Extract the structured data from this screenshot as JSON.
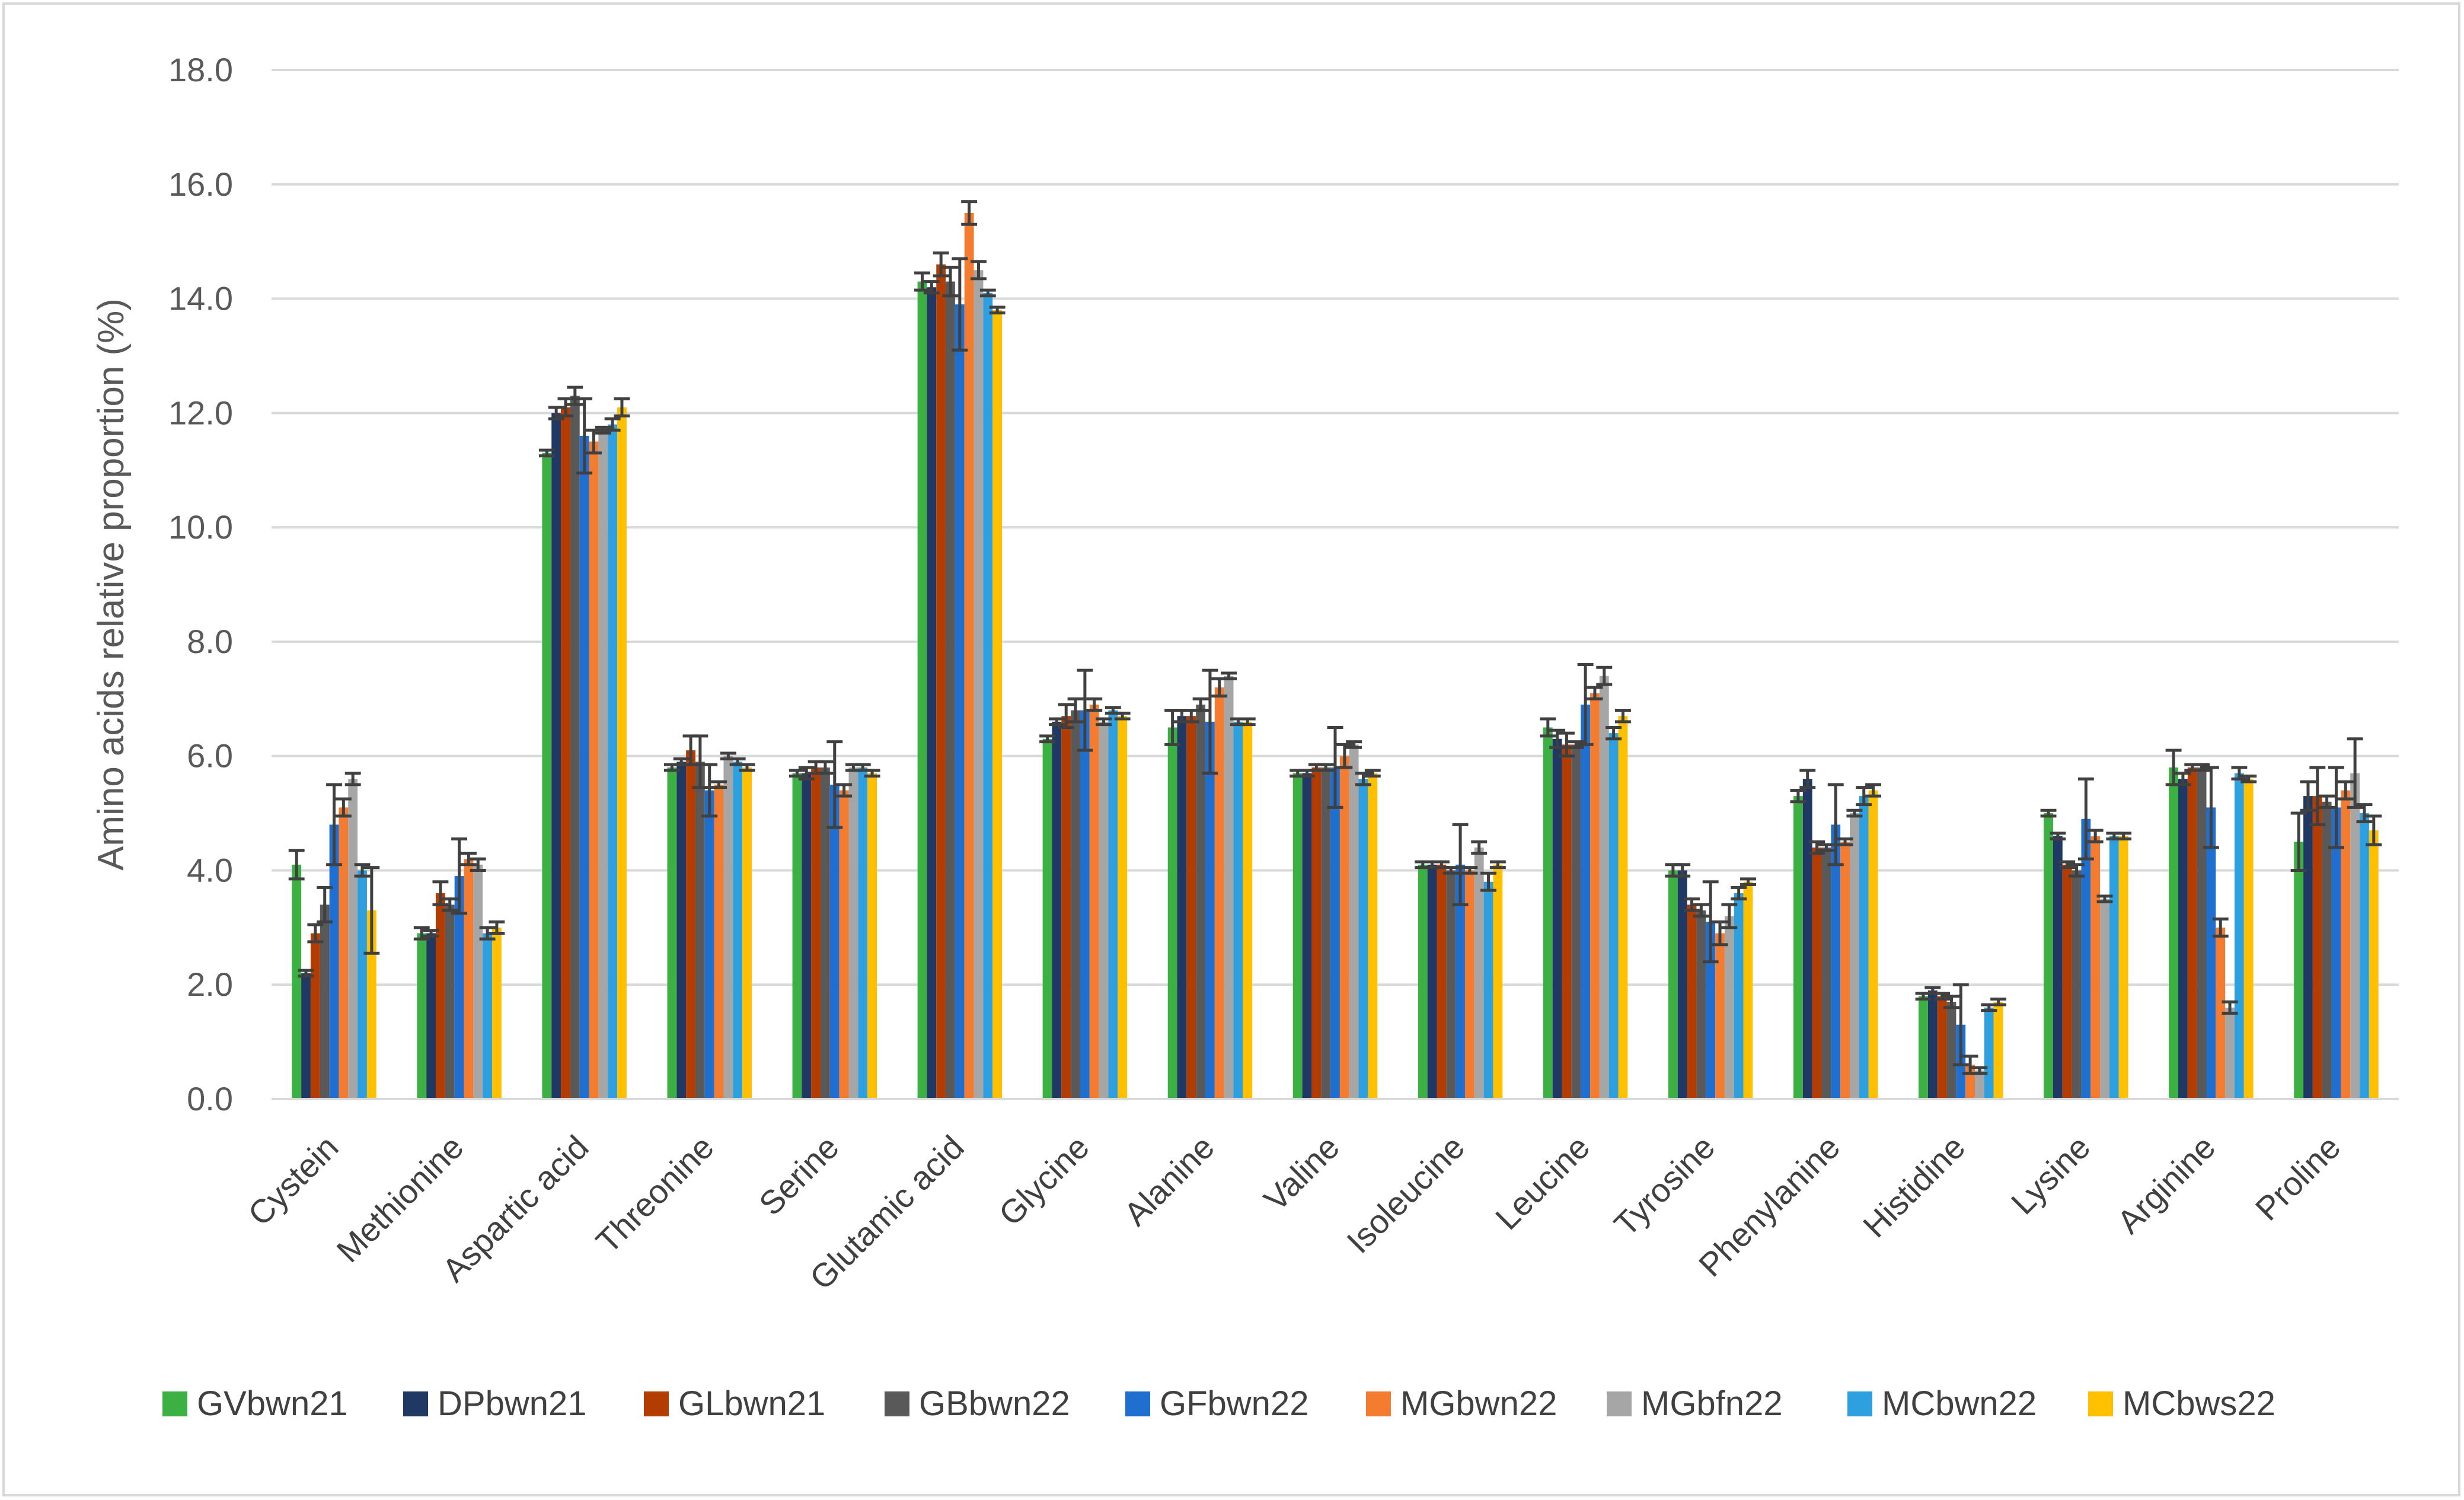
{
  "chart_data": {
    "type": "bar",
    "title": "",
    "xlabel": "",
    "ylabel": "Amino acids relative proportion (%)",
    "ylim": [
      0,
      18
    ],
    "yticks": [
      "0.0",
      "2.0",
      "4.0",
      "6.0",
      "8.0",
      "10.0",
      "12.0",
      "14.0",
      "16.0",
      "18.0"
    ],
    "grid": true,
    "legend_position": "bottom",
    "categories": [
      "Cystein",
      "Methionine",
      "Aspartic acid",
      "Threonine",
      "Serine",
      "Glutamic acid",
      "Glycine",
      "Alanine",
      "Valine",
      "Isoleucine",
      "Leucine",
      "Tyrosine",
      "Phenylanine",
      "Histidine",
      "Lysine",
      "Arginine",
      "Proline"
    ],
    "series": [
      {
        "name": "GVbwn21",
        "color": "#3cb043",
        "values": [
          4.1,
          2.9,
          11.3,
          5.8,
          5.7,
          14.3,
          6.3,
          6.5,
          5.7,
          4.1,
          6.5,
          4.0,
          5.3,
          1.8,
          5.0,
          5.8,
          4.5
        ],
        "errors": [
          0.25,
          0.1,
          0.05,
          0.05,
          0.05,
          0.15,
          0.05,
          0.3,
          0.05,
          0.05,
          0.15,
          0.1,
          0.1,
          0.05,
          0.05,
          0.3,
          0.5
        ]
      },
      {
        "name": "DPbwn21",
        "color": "#1f3864",
        "values": [
          2.2,
          2.9,
          12.0,
          5.9,
          5.7,
          14.2,
          6.6,
          6.7,
          5.7,
          4.1,
          6.3,
          4.0,
          5.6,
          1.9,
          4.6,
          5.6,
          5.3
        ],
        "errors": [
          0.05,
          0.05,
          0.1,
          0.05,
          0.1,
          0.1,
          0.05,
          0.1,
          0.05,
          0.05,
          0.15,
          0.1,
          0.15,
          0.05,
          0.05,
          0.1,
          0.25
        ]
      },
      {
        "name": "GLbwn21",
        "color": "#b33c00",
        "values": [
          2.9,
          3.6,
          12.1,
          6.1,
          5.8,
          14.6,
          6.7,
          6.7,
          5.8,
          4.1,
          6.2,
          3.4,
          4.4,
          1.8,
          4.1,
          5.8,
          5.3
        ],
        "errors": [
          0.15,
          0.2,
          0.15,
          0.25,
          0.1,
          0.2,
          0.2,
          0.1,
          0.05,
          0.05,
          0.2,
          0.1,
          0.1,
          0.05,
          0.05,
          0.05,
          0.5
        ]
      },
      {
        "name": "GBbwn22",
        "color": "#595959",
        "values": [
          3.4,
          3.4,
          12.3,
          5.9,
          5.8,
          14.3,
          6.8,
          6.9,
          5.8,
          4.0,
          6.2,
          3.3,
          4.4,
          1.7,
          4.0,
          5.8,
          5.2
        ],
        "errors": [
          0.3,
          0.1,
          0.15,
          0.45,
          0.1,
          0.25,
          0.2,
          0.1,
          0.05,
          0.05,
          0.05,
          0.1,
          0.05,
          0.1,
          0.1,
          0.05,
          0.1
        ]
      },
      {
        "name": "GFbwn22",
        "color": "#1f6fd0",
        "values": [
          4.8,
          3.9,
          11.6,
          5.4,
          5.5,
          13.9,
          6.8,
          6.6,
          5.8,
          4.1,
          6.9,
          3.1,
          4.8,
          1.3,
          4.9,
          5.1,
          5.1
        ],
        "errors": [
          0.7,
          0.65,
          0.65,
          0.45,
          0.75,
          0.8,
          0.7,
          0.9,
          0.7,
          0.7,
          0.7,
          0.7,
          0.7,
          0.7,
          0.7,
          0.7,
          0.7
        ]
      },
      {
        "name": "MGbwn22",
        "color": "#f47c30",
        "values": [
          5.1,
          4.2,
          11.5,
          5.5,
          5.4,
          15.5,
          6.9,
          7.2,
          6.0,
          4.0,
          7.1,
          2.9,
          4.5,
          0.6,
          4.6,
          3.0,
          5.4
        ],
        "errors": [
          0.15,
          0.1,
          0.2,
          0.05,
          0.1,
          0.2,
          0.1,
          0.15,
          0.2,
          0.05,
          0.1,
          0.2,
          0.05,
          0.15,
          0.1,
          0.15,
          0.15
        ]
      },
      {
        "name": "MGbfn22",
        "color": "#a6a6a6",
        "values": [
          5.6,
          4.1,
          11.7,
          6.0,
          5.8,
          14.5,
          6.6,
          7.4,
          6.2,
          4.4,
          7.4,
          3.2,
          5.0,
          0.5,
          3.5,
          1.6,
          5.7
        ],
        "errors": [
          0.1,
          0.1,
          0.05,
          0.05,
          0.05,
          0.15,
          0.05,
          0.05,
          0.05,
          0.1,
          0.15,
          0.2,
          0.05,
          0.05,
          0.05,
          0.1,
          0.6
        ]
      },
      {
        "name": "MCbwn22",
        "color": "#2e9fdf",
        "values": [
          4.0,
          2.9,
          11.8,
          5.9,
          5.8,
          14.1,
          6.8,
          6.6,
          5.6,
          3.8,
          6.4,
          3.6,
          5.3,
          1.6,
          4.6,
          5.7,
          5.0
        ],
        "errors": [
          0.1,
          0.1,
          0.1,
          0.05,
          0.05,
          0.05,
          0.05,
          0.05,
          0.1,
          0.15,
          0.1,
          0.1,
          0.15,
          0.05,
          0.05,
          0.1,
          0.15
        ]
      },
      {
        "name": "MCbws22",
        "color": "#ffc000",
        "values": [
          3.3,
          3.0,
          12.1,
          5.8,
          5.7,
          13.8,
          6.7,
          6.6,
          5.7,
          4.1,
          6.7,
          3.8,
          5.4,
          1.7,
          4.6,
          5.6,
          4.7
        ],
        "errors": [
          0.75,
          0.1,
          0.15,
          0.05,
          0.05,
          0.05,
          0.05,
          0.05,
          0.05,
          0.05,
          0.1,
          0.05,
          0.1,
          0.05,
          0.05,
          0.05,
          0.25
        ]
      }
    ]
  }
}
